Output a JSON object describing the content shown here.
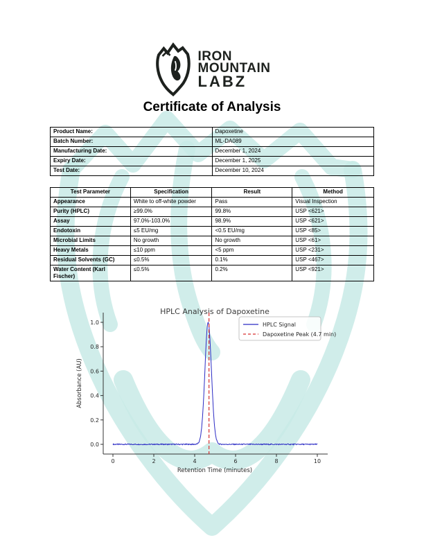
{
  "page": {
    "title": "Certificate of Analysis"
  },
  "logo": {
    "line1": "IRON",
    "line2": "MOUNTAIN",
    "line3": "LABZ",
    "icon": "mountain-shield-icon",
    "color": "#1d211e"
  },
  "watermark": {
    "icon": "mountain-shield-watermark",
    "color": "#c8eae6"
  },
  "info_table": {
    "rows": [
      {
        "label": "Product Name:",
        "value": "Dapoxetine"
      },
      {
        "label": "Batch Number:",
        "value": "ML-DA089"
      },
      {
        "label": "Manufacturing Date:",
        "value": "December 1, 2024"
      },
      {
        "label": "Expiry Date:",
        "value": "December 1, 2025"
      },
      {
        "label": "Test Date:",
        "value": "December 10, 2024"
      }
    ]
  },
  "results_table": {
    "headers": [
      "Test Parameter",
      "Specification",
      "Result",
      "Method"
    ],
    "rows": [
      [
        "Appearance",
        "White to off-white powder",
        "Pass",
        "Visual Inspection"
      ],
      [
        "Purity (HPLC)",
        "≥99.0%",
        "99.8%",
        "USP <621>"
      ],
      [
        "Assay",
        "97.0%-103.0%",
        "98.9%",
        "USP <621>"
      ],
      [
        "Endotoxin",
        "≤5 EU/mg",
        "<0.5 EU/mg",
        "USP <85>"
      ],
      [
        "Microbial Limits",
        "No growth",
        "No growth",
        "USP <61>"
      ],
      [
        "Heavy Metals",
        "≤10 ppm",
        "<5 ppm",
        "USP <231>"
      ],
      [
        "Residual Solvents (GC)",
        "≤0.5%",
        "0.1%",
        "USP <467>"
      ],
      [
        "Water Content (Karl Fischer)",
        "≤0.5%",
        "0.2%",
        "USP <921>"
      ]
    ]
  },
  "chart_data": {
    "type": "line",
    "title": "HPLC Analysis of Dapoxetine",
    "xlabel": "Retention Time (minutes)",
    "ylabel": "Absorbance (AU)",
    "xticks": [
      0,
      2,
      4,
      6,
      8,
      10
    ],
    "yticks": [
      0.0,
      0.2,
      0.4,
      0.6,
      0.8,
      1.0
    ],
    "xlim": [
      -0.5,
      10.5
    ],
    "ylim": [
      -0.08,
      1.08
    ],
    "grid": false,
    "legend_position": "upper right",
    "series": [
      {
        "name": "HPLC Signal",
        "type": "gaussian-peak",
        "color": "#2a2ac4",
        "line_style": "solid",
        "x_range": [
          0,
          10
        ],
        "peak_center": 4.66,
        "peak_height": 1.0,
        "peak_sigma": 0.16,
        "baseline": 0.0,
        "noise_amplitude": 0.004,
        "n_points": 500
      },
      {
        "name": "Dapoxetine Peak (4.7 min)",
        "type": "vline",
        "color": "#d62f2f",
        "line_style": "dashed",
        "x": 4.7
      }
    ],
    "title_color": "#3c3c3c",
    "tick_color": "#262626"
  }
}
